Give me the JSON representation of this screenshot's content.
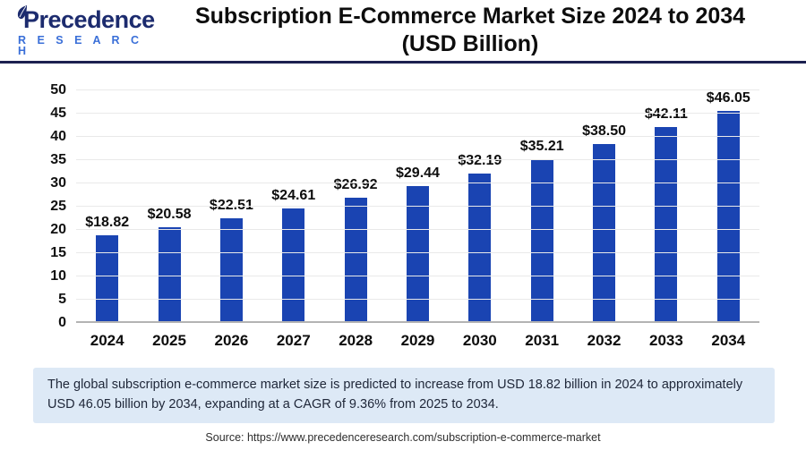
{
  "header": {
    "logo_name": "Precedence",
    "logo_sub": "R E S E A R C H",
    "title_line1": "Subscription E-Commerce Market Size 2024 to 2034",
    "title_line2": "(USD Billion)"
  },
  "chart_data": {
    "type": "bar",
    "title": "Subscription E-Commerce Market Size 2024 to 2034 (USD Billion)",
    "categories": [
      "2024",
      "2025",
      "2026",
      "2027",
      "2028",
      "2029",
      "2030",
      "2031",
      "2032",
      "2033",
      "2034"
    ],
    "values": [
      18.82,
      20.58,
      22.51,
      24.61,
      26.92,
      29.44,
      32.19,
      35.21,
      38.5,
      42.11,
      46.05
    ],
    "value_labels": [
      "$18.82",
      "$20.58",
      "$22.51",
      "$24.61",
      "$26.92",
      "$29.44",
      "$32.19",
      "$35.21",
      "$38.50",
      "$42.11",
      "$46.05"
    ],
    "xlabel": "",
    "ylabel": "",
    "ylim": [
      0,
      50
    ],
    "ytick_step": 5,
    "grid": true,
    "legend": "none",
    "bar_color": "#1a44b2"
  },
  "caption": "The global subscription e-commerce market size is predicted to increase from USD 18.82 billion in 2024 to approximately USD 46.05 billion by 2034, expanding at a CAGR of 9.36% from 2025 to 2034.",
  "source": "Source: https://www.precedenceresearch.com/subscription-e-commerce-market",
  "colors": {
    "bar": "#1a44b2",
    "header_rule": "#1c2050",
    "logo_name": "#1c2b6e",
    "logo_sub": "#3a6fd8",
    "caption_bg": "#dde9f6",
    "gridline": "#e9e9e9",
    "axis_line": "#b3b3b3"
  }
}
